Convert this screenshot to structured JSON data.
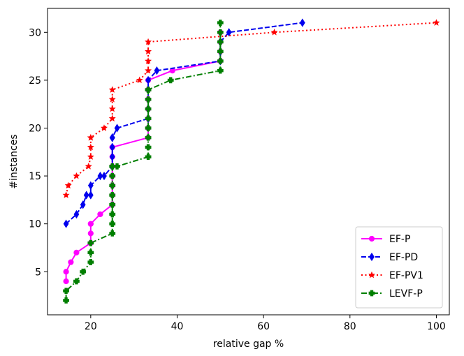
{
  "chart_data": {
    "type": "line",
    "title": "",
    "xlabel": "relative gap %",
    "ylabel": "#instances",
    "xlim": [
      10,
      103
    ],
    "ylim": [
      0.5,
      32.5
    ],
    "xticks": [
      20,
      40,
      60,
      80,
      100
    ],
    "yticks": [
      5,
      10,
      15,
      20,
      25,
      30
    ],
    "legend_position": "lower-right",
    "series": [
      {
        "name": "EF-P",
        "color": "#ff00ff",
        "linestyle": "solid",
        "marker": "circle",
        "x": [
          14.3,
          14.3,
          15.4,
          16.7,
          20.0,
          20.0,
          20.0,
          20.0,
          22.2,
          25.0,
          25.0,
          25.0,
          25.0,
          25.0,
          25.0,
          25.0,
          25.0,
          33.3,
          33.3,
          33.3,
          33.3,
          33.3,
          33.3,
          33.3,
          38.9,
          50.0,
          50.0,
          50.0,
          50.0
        ],
        "y": [
          4,
          5,
          6,
          7,
          8,
          9,
          10,
          10,
          11,
          12,
          13,
          14,
          15,
          16,
          17,
          18,
          18,
          19,
          20,
          21,
          22,
          23,
          24,
          25,
          26,
          27,
          28,
          29,
          30
        ]
      },
      {
        "name": "EF-PD",
        "color": "#0000ee",
        "linestyle": "dashed",
        "marker": "thin-diamond",
        "x": [
          14.3,
          16.7,
          18.2,
          19.0,
          20.0,
          20.0,
          22.2,
          23.1,
          25.0,
          25.0,
          25.0,
          25.0,
          25.0,
          25.0,
          25.0,
          25.0,
          25.0,
          26.1,
          33.3,
          33.3,
          33.3,
          33.3,
          35.3,
          50.0,
          50.0,
          50.0,
          52.0,
          69.0
        ],
        "y": [
          10,
          11,
          12,
          13,
          13,
          14,
          15,
          15,
          16,
          16,
          17,
          18,
          19,
          19,
          19,
          19,
          19,
          20,
          21,
          22,
          24,
          25,
          26,
          27,
          28,
          29,
          30,
          31
        ]
      },
      {
        "name": "EF-PV1",
        "color": "#ff0000",
        "linestyle": "dotted",
        "marker": "star",
        "x": [
          14.3,
          14.8,
          16.7,
          19.5,
          20.0,
          20.0,
          20.0,
          20.0,
          23.1,
          25.0,
          25.0,
          25.0,
          25.0,
          31.3,
          33.3,
          33.3,
          33.3,
          33.3,
          62.5,
          100.0
        ],
        "y": [
          13,
          14,
          15,
          16,
          17,
          18,
          19,
          19,
          20,
          21,
          22,
          23,
          24,
          25,
          26,
          27,
          28,
          29,
          30,
          31
        ]
      },
      {
        "name": "LEVF-P",
        "color": "#007f00",
        "linestyle": "dashdot",
        "marker": "x-filled",
        "x": [
          14.3,
          14.3,
          16.7,
          18.2,
          20.0,
          20.0,
          20.0,
          25.0,
          25.0,
          25.0,
          25.0,
          25.0,
          25.0,
          25.0,
          25.0,
          26.1,
          33.3,
          33.3,
          33.3,
          33.3,
          33.3,
          33.3,
          33.3,
          33.3,
          33.3,
          38.5,
          50.0,
          50.0,
          50.0,
          50.0,
          50.0,
          50.0
        ],
        "y": [
          2,
          3,
          4,
          5,
          6,
          7,
          8,
          9,
          10,
          11,
          12,
          13,
          14,
          15,
          16,
          16,
          17,
          18,
          19,
          20,
          21,
          22,
          23,
          24,
          24,
          25,
          26,
          27,
          28,
          29,
          30,
          31
        ]
      }
    ]
  }
}
